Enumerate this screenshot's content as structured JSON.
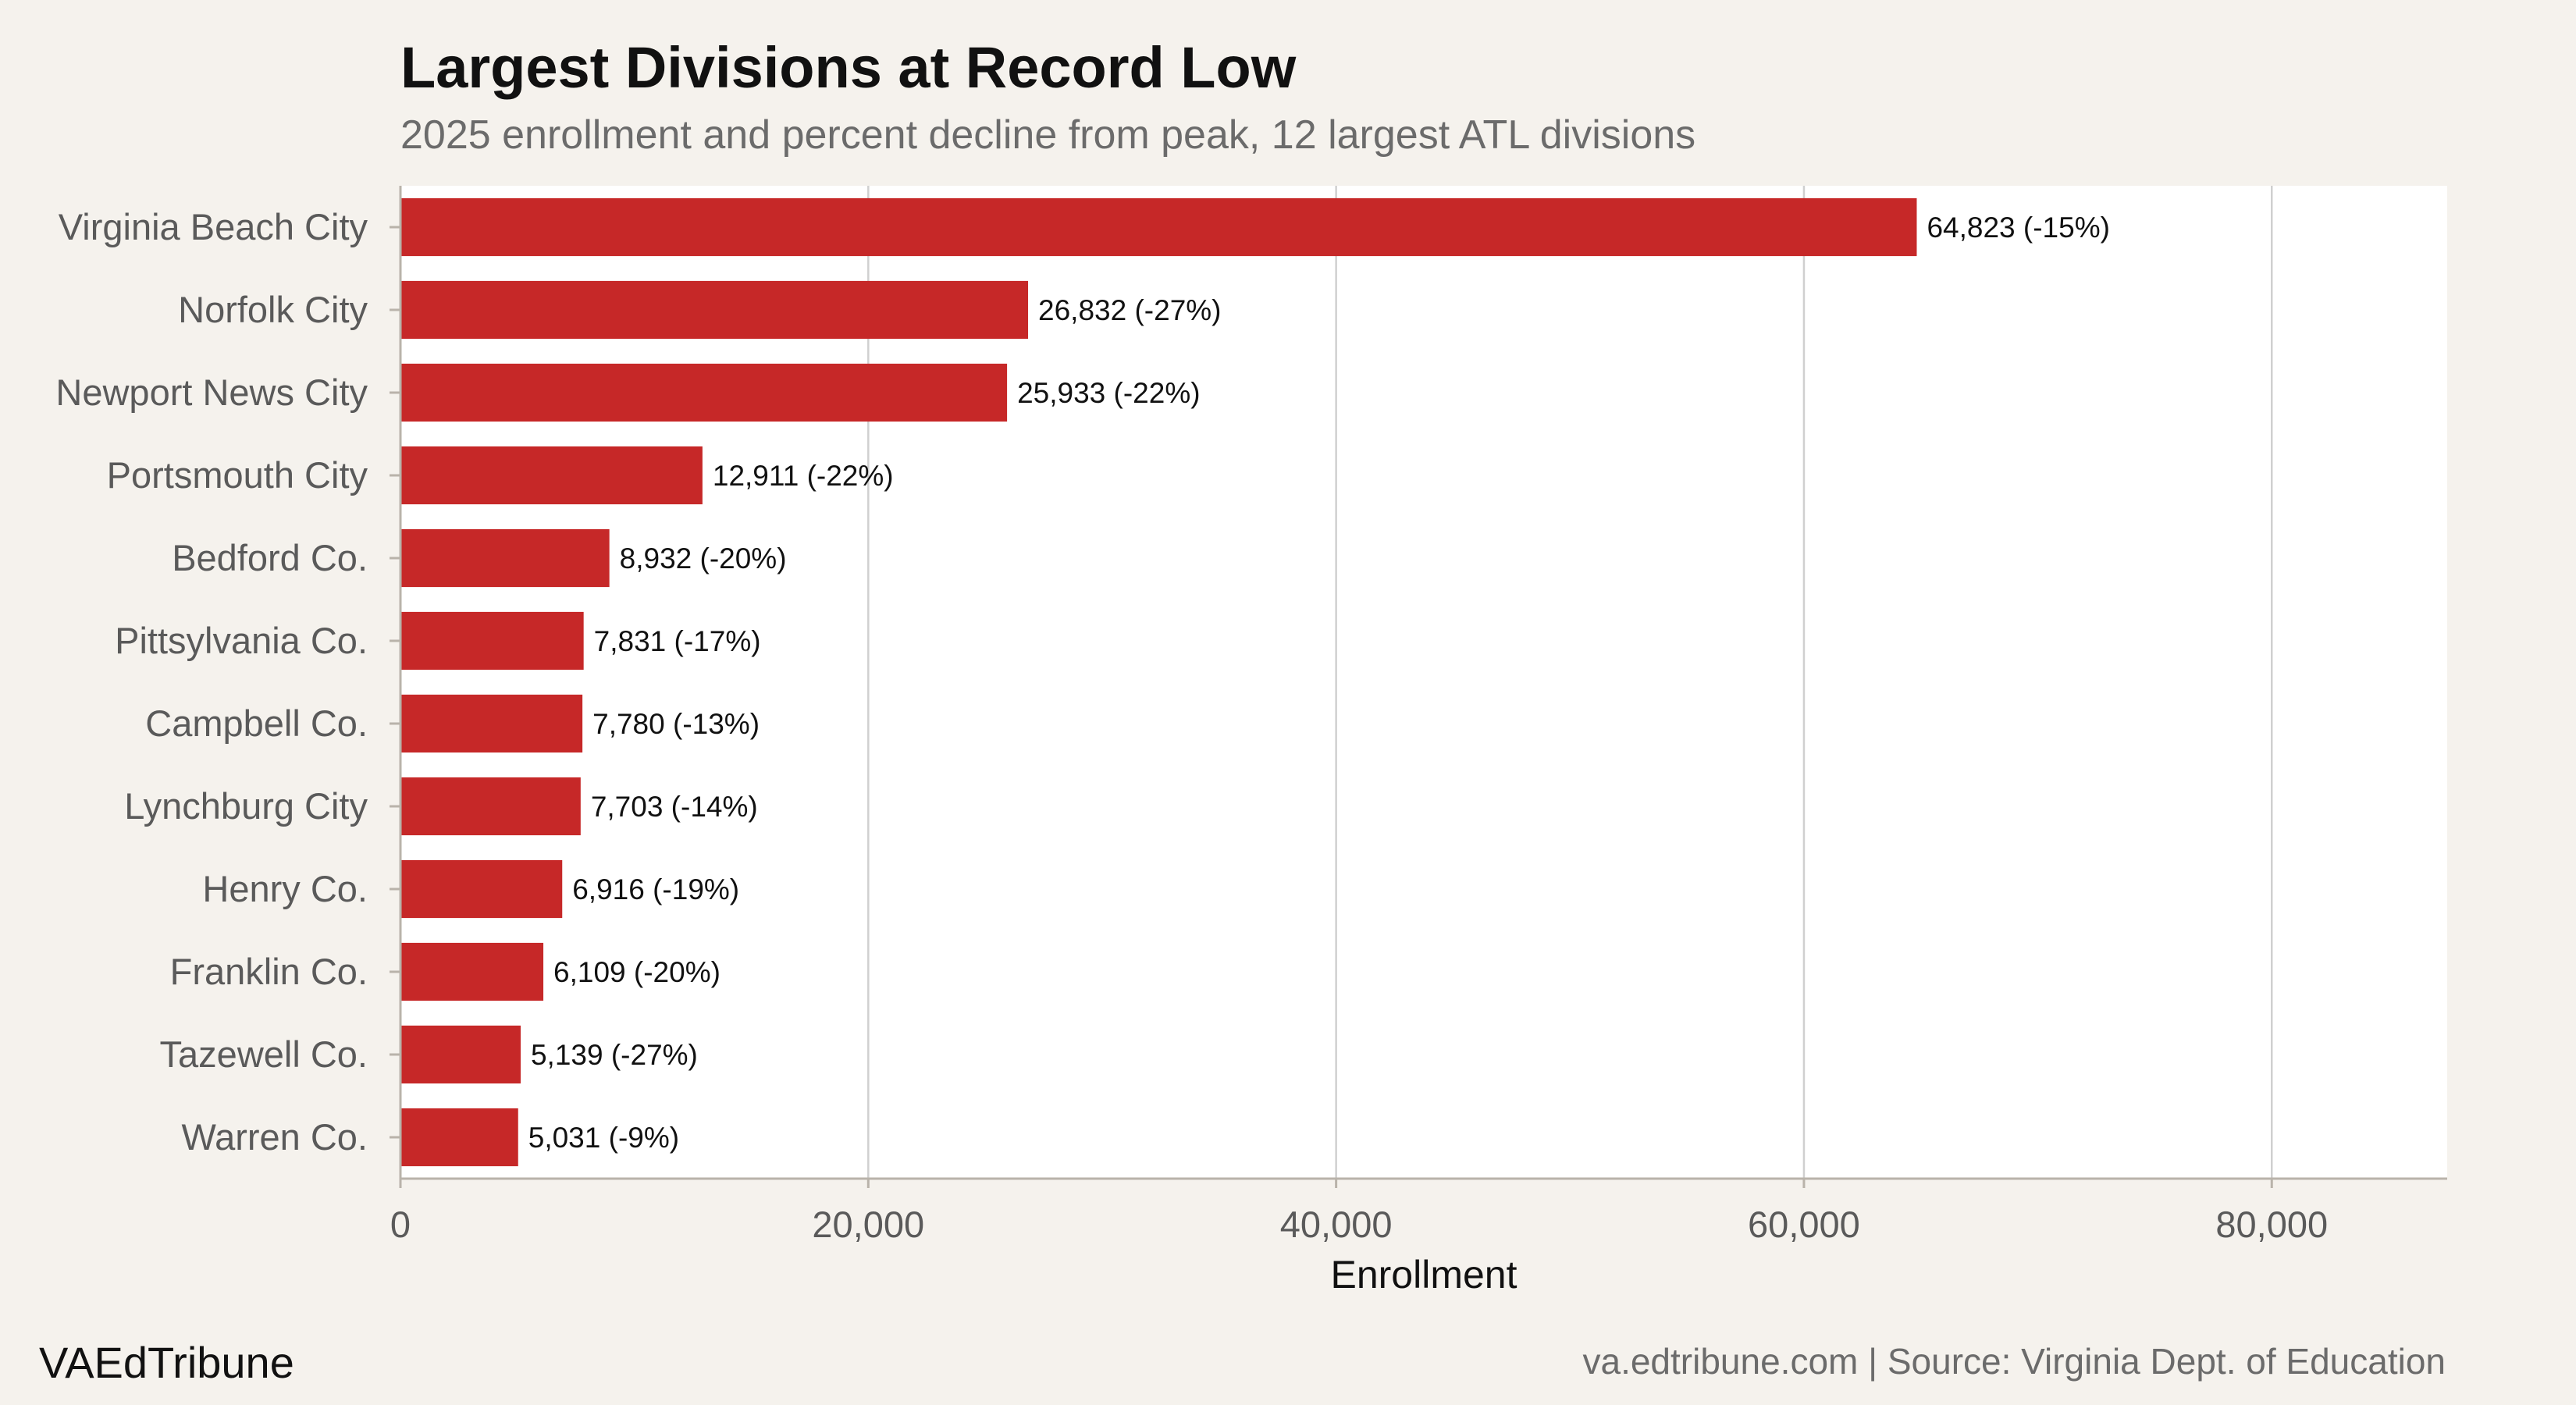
{
  "chart_data": {
    "type": "bar",
    "orientation": "horizontal",
    "title": "Largest Divisions at Record Low",
    "subtitle": "2025 enrollment and percent decline from peak, 12 largest ATL divisions",
    "xlabel": "Enrollment",
    "ylabel": "",
    "xlim": [
      0,
      87500
    ],
    "x_ticks": [
      0,
      20000,
      40000,
      60000,
      80000
    ],
    "x_tick_labels": [
      "0",
      "20,000",
      "40,000",
      "60,000",
      "80,000"
    ],
    "grid": "vertical",
    "bar_color": "#c62828",
    "categories": [
      "Virginia Beach City",
      "Norfolk City",
      "Newport News City",
      "Portsmouth City",
      "Bedford Co.",
      "Pittsylvania Co.",
      "Campbell Co.",
      "Lynchburg City",
      "Henry Co.",
      "Franklin Co.",
      "Tazewell Co.",
      "Warren Co."
    ],
    "values": [
      64823,
      26832,
      25933,
      12911,
      8932,
      7831,
      7780,
      7703,
      6916,
      6109,
      5139,
      5031
    ],
    "data_labels": [
      "64,823 (-15%)",
      "26,832 (-27%)",
      "25,933 (-22%)",
      "12,911 (-22%)",
      "8,932 (-20%)",
      "7,831 (-17%)",
      "7,780 (-13%)",
      "7,703 (-14%)",
      "6,916 (-19%)",
      "6,109 (-20%)",
      "5,139 (-27%)",
      "5,031 (-9%)"
    ]
  },
  "footer": {
    "brand": "VAEdTribune",
    "source": "va.edtribune.com | Source: Virginia Dept. of Education"
  }
}
